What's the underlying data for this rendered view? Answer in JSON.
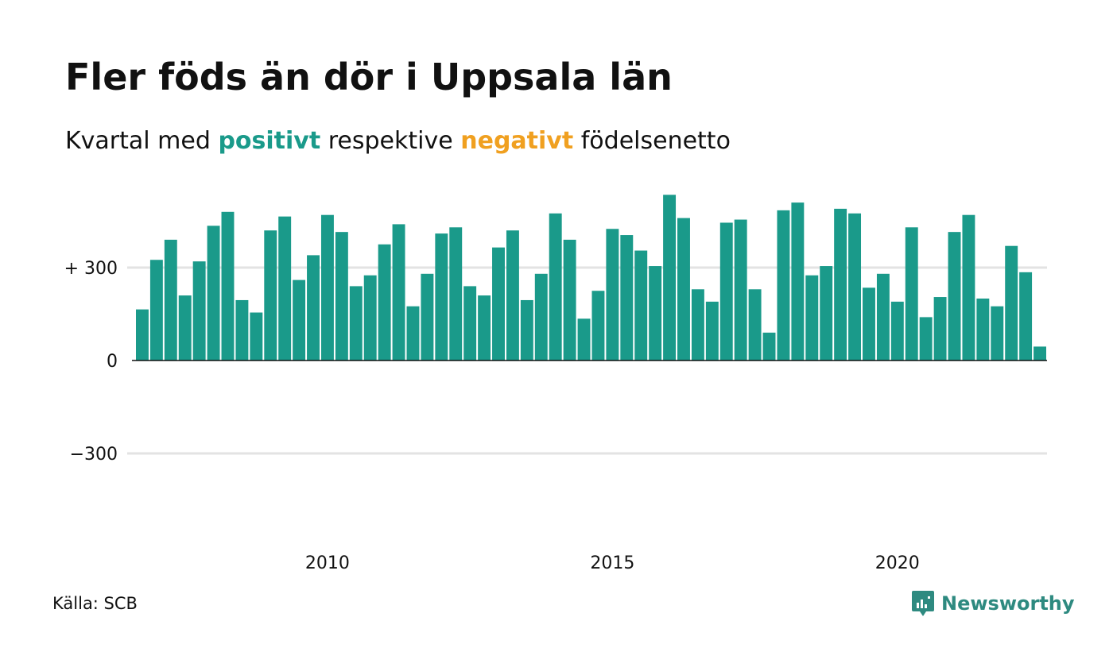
{
  "title": "Fler föds än dör i Uppsala län",
  "subtitle": {
    "before": "Kvartal med",
    "positive": "positivt",
    "middle": "respektive",
    "negative": "negativt",
    "after": "födelsenetto"
  },
  "source": "Källa: SCB",
  "brand": {
    "name": "Newsworthy",
    "icon": "newsworthy-logo-icon"
  },
  "colors": {
    "positive": "#1a9a8a",
    "negative": "#f0a020",
    "grid": "#e3e3e3",
    "axis": "#111111",
    "brand": "#2e8a80"
  },
  "chart_data": {
    "type": "bar",
    "xlabel": "",
    "ylabel": "",
    "ylim": [
      -600,
      600
    ],
    "y_ticks": [
      {
        "value": 300,
        "label": "+ 300"
      },
      {
        "value": 0,
        "label": "0"
      },
      {
        "value": -300,
        "label": "−300"
      }
    ],
    "x_ticks": [
      {
        "label": "2010"
      },
      {
        "label": "2015"
      },
      {
        "label": "2020"
      }
    ],
    "x_tick_positions": [
      13.5,
      33.5,
      53.5
    ],
    "grid": true,
    "series": [
      {
        "values": [
          165,
          325,
          390,
          210,
          320,
          435,
          480,
          195,
          155,
          420,
          465,
          260,
          340,
          470,
          415,
          240,
          275,
          375,
          440,
          175,
          280,
          410,
          430,
          240,
          210,
          365,
          420,
          195,
          280,
          475,
          390,
          135,
          225,
          425,
          405,
          355,
          305,
          535,
          460,
          230,
          190,
          445,
          455,
          230,
          90,
          485,
          510,
          275,
          305,
          490,
          475,
          235,
          280,
          190,
          430,
          140,
          205,
          415,
          470,
          200,
          175,
          370,
          285,
          45
        ]
      }
    ]
  }
}
